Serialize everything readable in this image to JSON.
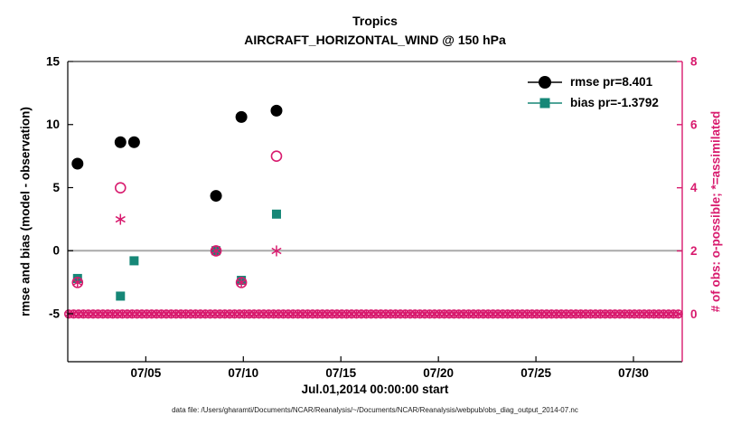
{
  "figure": {
    "footer": "data file: /Users/gharamti/Documents/NCAR/Reanalysis/~/Documents/NCAR/Reanalysis/webpub/obs_diag_output_2014-07.nc"
  },
  "colors": {
    "accent_pink": "#d81b6e",
    "teal": "#168777",
    "black": "#000000",
    "zero_line": "#aaaaaa",
    "axis": "#000000"
  },
  "chart_data": {
    "type": "scatter",
    "title": "Tropics",
    "subtitle": "AIRCRAFT_HORIZONTAL_WIND @ 150 hPa",
    "xlabel": "Jul.01,2014 00:00:00 start",
    "ylabel_left": "rmse and bias (model - observation)",
    "ylabel_right": "# of obs: o-possible; *=assimilated",
    "legend_position": "top-right",
    "grid": false,
    "x_axis": {
      "range": [
        1,
        32.5
      ],
      "ticks": [
        5,
        10,
        15,
        20,
        25,
        30
      ],
      "tick_labels": [
        "07/05",
        "07/10",
        "07/15",
        "07/20",
        "07/25",
        "07/30"
      ]
    },
    "y_left": {
      "range": [
        -8.8,
        15
      ],
      "ticks": [
        15,
        10,
        5,
        0,
        -5
      ],
      "tick_labels": [
        "15",
        "10",
        "5",
        "0",
        "-5"
      ]
    },
    "y_right": {
      "range": [
        -1.51,
        8
      ],
      "ticks": [
        8,
        6,
        4,
        2,
        0
      ],
      "tick_labels": [
        "8",
        "6",
        "4",
        "2",
        "0"
      ]
    },
    "zero_line_value": 0,
    "zero_row": {
      "axis": "right",
      "value": 0,
      "start": 1.05,
      "end": 32.45,
      "step": 0.25
    },
    "series": [
      {
        "name": "rmse",
        "legend_label": "rmse pr=8.401",
        "marker": "filled-circle",
        "color": "#000000",
        "axis": "left",
        "size": 6.5,
        "points": [
          [
            1.5,
            6.9
          ],
          [
            3.7,
            8.6
          ],
          [
            4.4,
            8.6
          ],
          [
            8.6,
            4.35
          ],
          [
            9.9,
            10.6
          ],
          [
            11.7,
            11.1
          ]
        ]
      },
      {
        "name": "bias",
        "legend_label": "bias pr=-1.3792",
        "marker": "filled-square",
        "color": "#168777",
        "axis": "left",
        "size": 5,
        "points": [
          [
            1.5,
            -2.2
          ],
          [
            3.7,
            -3.6
          ],
          [
            4.4,
            -0.8
          ],
          [
            8.6,
            0.0
          ],
          [
            9.9,
            -2.35
          ],
          [
            11.7,
            2.9
          ]
        ]
      },
      {
        "name": "possible-obs",
        "legend_label": "",
        "marker": "open-circle",
        "color": "#d81b6e",
        "axis": "right",
        "size": 5.5,
        "points": [
          [
            1.5,
            1
          ],
          [
            3.7,
            4
          ],
          [
            8.6,
            2
          ],
          [
            9.9,
            1
          ],
          [
            11.7,
            5
          ]
        ]
      },
      {
        "name": "assimilated-obs",
        "legend_label": "",
        "marker": "asterisk",
        "color": "#d81b6e",
        "axis": "right",
        "size": 6,
        "points": [
          [
            1.5,
            1
          ],
          [
            3.7,
            3
          ],
          [
            8.6,
            2
          ],
          [
            9.9,
            1
          ],
          [
            11.7,
            2
          ]
        ]
      }
    ]
  }
}
